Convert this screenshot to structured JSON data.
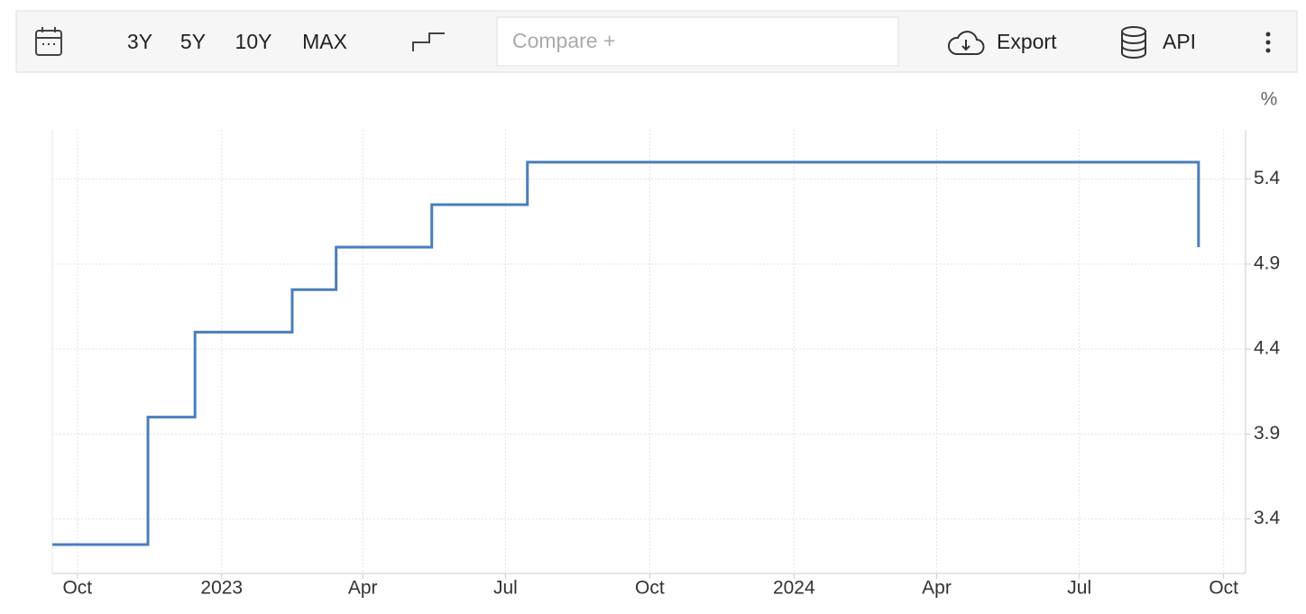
{
  "toolbar": {
    "ranges": [
      "3Y",
      "5Y",
      "10Y",
      "MAX"
    ],
    "compare": "Compare +",
    "export": "Export",
    "api": "API"
  },
  "chart_data": {
    "type": "line",
    "step": true,
    "unit": "%",
    "color": "#4a7ebb",
    "grid": true,
    "x": [
      "2022-09",
      "2022-11",
      "2022-12",
      "2023-02",
      "2023-03",
      "2023-05",
      "2023-07",
      "2024-09"
    ],
    "values": [
      3.25,
      4.0,
      4.5,
      4.75,
      5.0,
      5.25,
      5.5,
      5.0
    ],
    "xlim": [
      "2022-09",
      "2024-10"
    ],
    "xticks": [
      {
        "value": "2022-10",
        "label": "Oct"
      },
      {
        "value": "2023-01",
        "label": "2023"
      },
      {
        "value": "2023-04",
        "label": "Apr"
      },
      {
        "value": "2023-07",
        "label": "Jul"
      },
      {
        "value": "2023-10",
        "label": "Oct"
      },
      {
        "value": "2024-01",
        "label": "2024"
      },
      {
        "value": "2024-04",
        "label": "Apr"
      },
      {
        "value": "2024-07",
        "label": "Jul"
      },
      {
        "value": "2024-10",
        "label": "Oct"
      }
    ],
    "ylim": [
      3.08,
      5.69
    ],
    "yticks": [
      3.4,
      3.9,
      4.4,
      4.9,
      5.4
    ]
  }
}
